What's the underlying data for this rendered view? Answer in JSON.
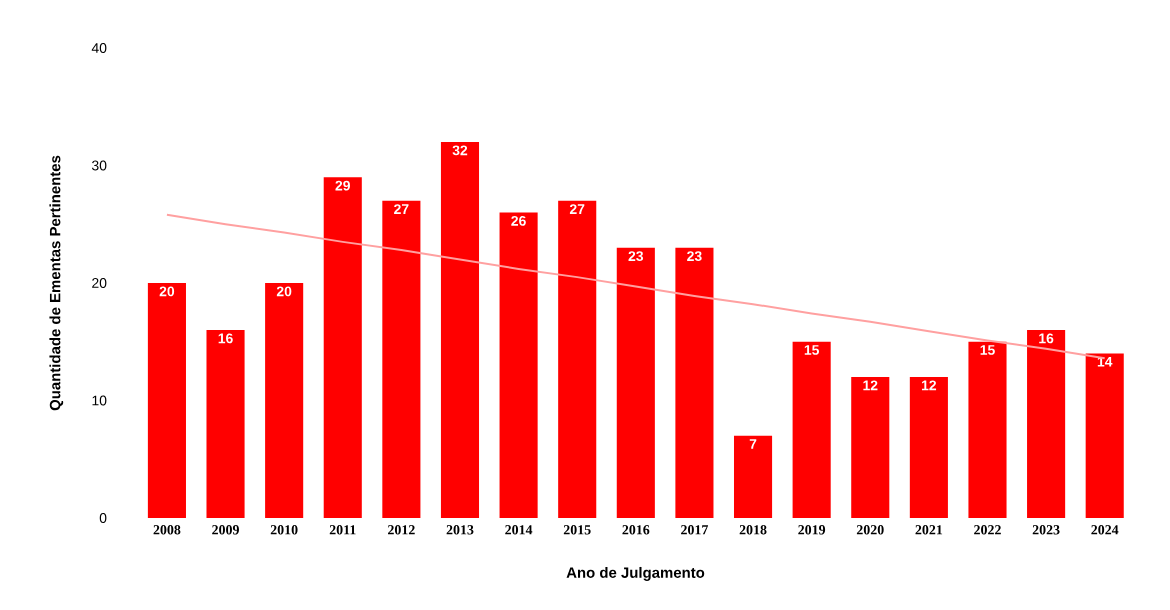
{
  "chart_data": {
    "type": "bar",
    "xlabel": "Ano de Julgamento",
    "ylabel": "Quantidade de Ementas Pertinentes",
    "categories": [
      "2008",
      "2009",
      "2010",
      "2011",
      "2012",
      "2013",
      "2014",
      "2015",
      "2016",
      "2017",
      "2018",
      "2019",
      "2020",
      "2021",
      "2022",
      "2023",
      "2024"
    ],
    "ylim": [
      0,
      40
    ],
    "yticks": [
      0,
      10,
      20,
      30,
      40
    ],
    "grid": false,
    "series": [
      {
        "color": "#ff0000",
        "values": [
          20,
          16,
          20,
          29,
          27,
          32,
          26,
          27,
          23,
          23,
          7,
          15,
          12,
          12,
          15,
          16,
          14
        ],
        "value_labels": [
          "20",
          "16",
          "20",
          "29",
          "27",
          "32",
          "26",
          "27",
          "23",
          "23",
          "7",
          "15",
          "12",
          "12",
          "15",
          "16",
          "14"
        ]
      },
      {
        "type": "line",
        "color": "#ffa0a0",
        "values": [
          25.8,
          25.0,
          24.3,
          23.5,
          22.8,
          22.0,
          21.2,
          20.5,
          19.7,
          18.9,
          18.2,
          17.4,
          16.7,
          15.9,
          15.1,
          14.4,
          13.6
        ]
      }
    ]
  }
}
